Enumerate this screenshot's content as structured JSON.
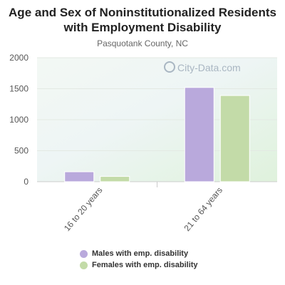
{
  "chart_data": {
    "type": "bar",
    "title": "Age and Sex of Noninstitutionalized Residents with Employment Disability",
    "subtitle": "Pasquotank County, NC",
    "categories": [
      "16 to 20 years",
      "21 to 64 years"
    ],
    "series": [
      {
        "name": "Males with emp. disability",
        "values": [
          160,
          1520
        ],
        "color": "#b9a9dc"
      },
      {
        "name": "Females with emp. disability",
        "values": [
          85,
          1390
        ],
        "color": "#c3dba8"
      }
    ],
    "yticks": [
      0,
      500,
      1000,
      1500,
      2000
    ],
    "ylim": [
      0,
      2000
    ],
    "grid": true,
    "legend_position": "bottom",
    "xlabel": "",
    "ylabel": ""
  },
  "watermark": {
    "text": "City-Data.com",
    "icon": "magnifier-icon"
  }
}
